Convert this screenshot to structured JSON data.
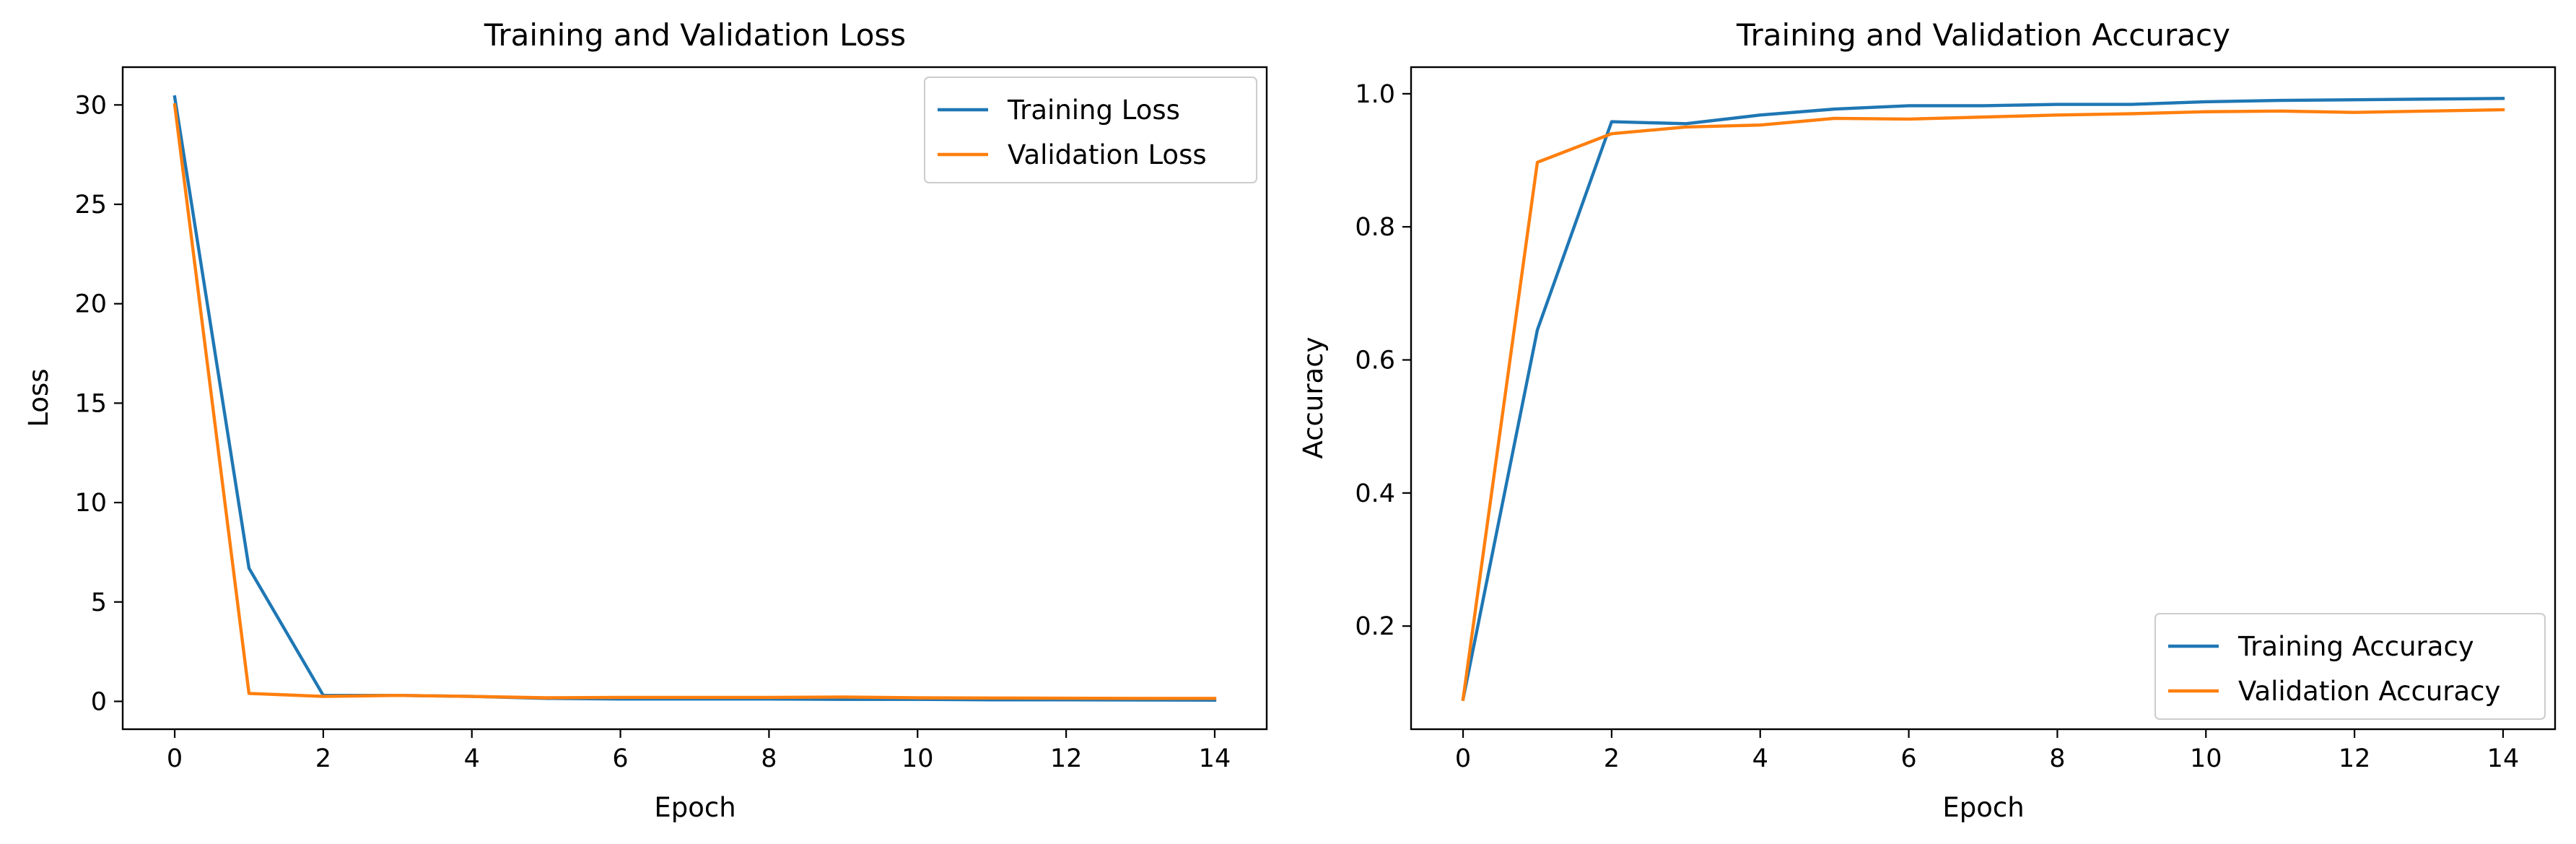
{
  "chart_data": [
    {
      "type": "line",
      "title": "Training and Validation Loss",
      "xlabel": "Epoch",
      "ylabel": "Loss",
      "xlim": [
        -0.7,
        14.7
      ],
      "ylim": [
        -1.4,
        31.9
      ],
      "xticks": [
        0,
        2,
        4,
        6,
        8,
        10,
        12,
        14
      ],
      "yticks": [
        0,
        5,
        10,
        15,
        20,
        25,
        30
      ],
      "x": [
        0,
        1,
        2,
        3,
        4,
        5,
        6,
        7,
        8,
        9,
        10,
        11,
        12,
        13,
        14
      ],
      "grid": false,
      "legend_position": "upper right",
      "series": [
        {
          "name": "Training Loss",
          "color": "#1f77b4",
          "values": [
            30.4,
            6.7,
            0.3,
            0.3,
            0.25,
            0.15,
            0.12,
            0.12,
            0.12,
            0.1,
            0.1,
            0.08,
            0.08,
            0.07,
            0.06
          ]
        },
        {
          "name": "Validation Loss",
          "color": "#ff7f0e",
          "values": [
            30.0,
            0.4,
            0.25,
            0.3,
            0.25,
            0.18,
            0.2,
            0.2,
            0.2,
            0.22,
            0.18,
            0.17,
            0.16,
            0.15,
            0.15
          ]
        }
      ]
    },
    {
      "type": "line",
      "title": "Training and Validation Accuracy",
      "xlabel": "Epoch",
      "ylabel": "Accuracy",
      "xlim": [
        -0.7,
        14.7
      ],
      "ylim": [
        0.045,
        1.04
      ],
      "xticks": [
        0,
        2,
        4,
        6,
        8,
        10,
        12,
        14
      ],
      "yticks": [
        0.2,
        0.4,
        0.6,
        0.8,
        1.0
      ],
      "x": [
        0,
        1,
        2,
        3,
        4,
        5,
        6,
        7,
        8,
        9,
        10,
        11,
        12,
        13,
        14
      ],
      "grid": false,
      "legend_position": "lower right",
      "series": [
        {
          "name": "Training Accuracy",
          "color": "#1f77b4",
          "values": [
            0.09,
            0.645,
            0.958,
            0.955,
            0.968,
            0.977,
            0.982,
            0.982,
            0.984,
            0.984,
            0.988,
            0.99,
            0.991,
            0.992,
            0.993
          ]
        },
        {
          "name": "Validation Accuracy",
          "color": "#ff7f0e",
          "values": [
            0.09,
            0.897,
            0.94,
            0.95,
            0.953,
            0.963,
            0.962,
            0.965,
            0.968,
            0.97,
            0.973,
            0.974,
            0.972,
            0.974,
            0.976
          ]
        }
      ]
    }
  ]
}
